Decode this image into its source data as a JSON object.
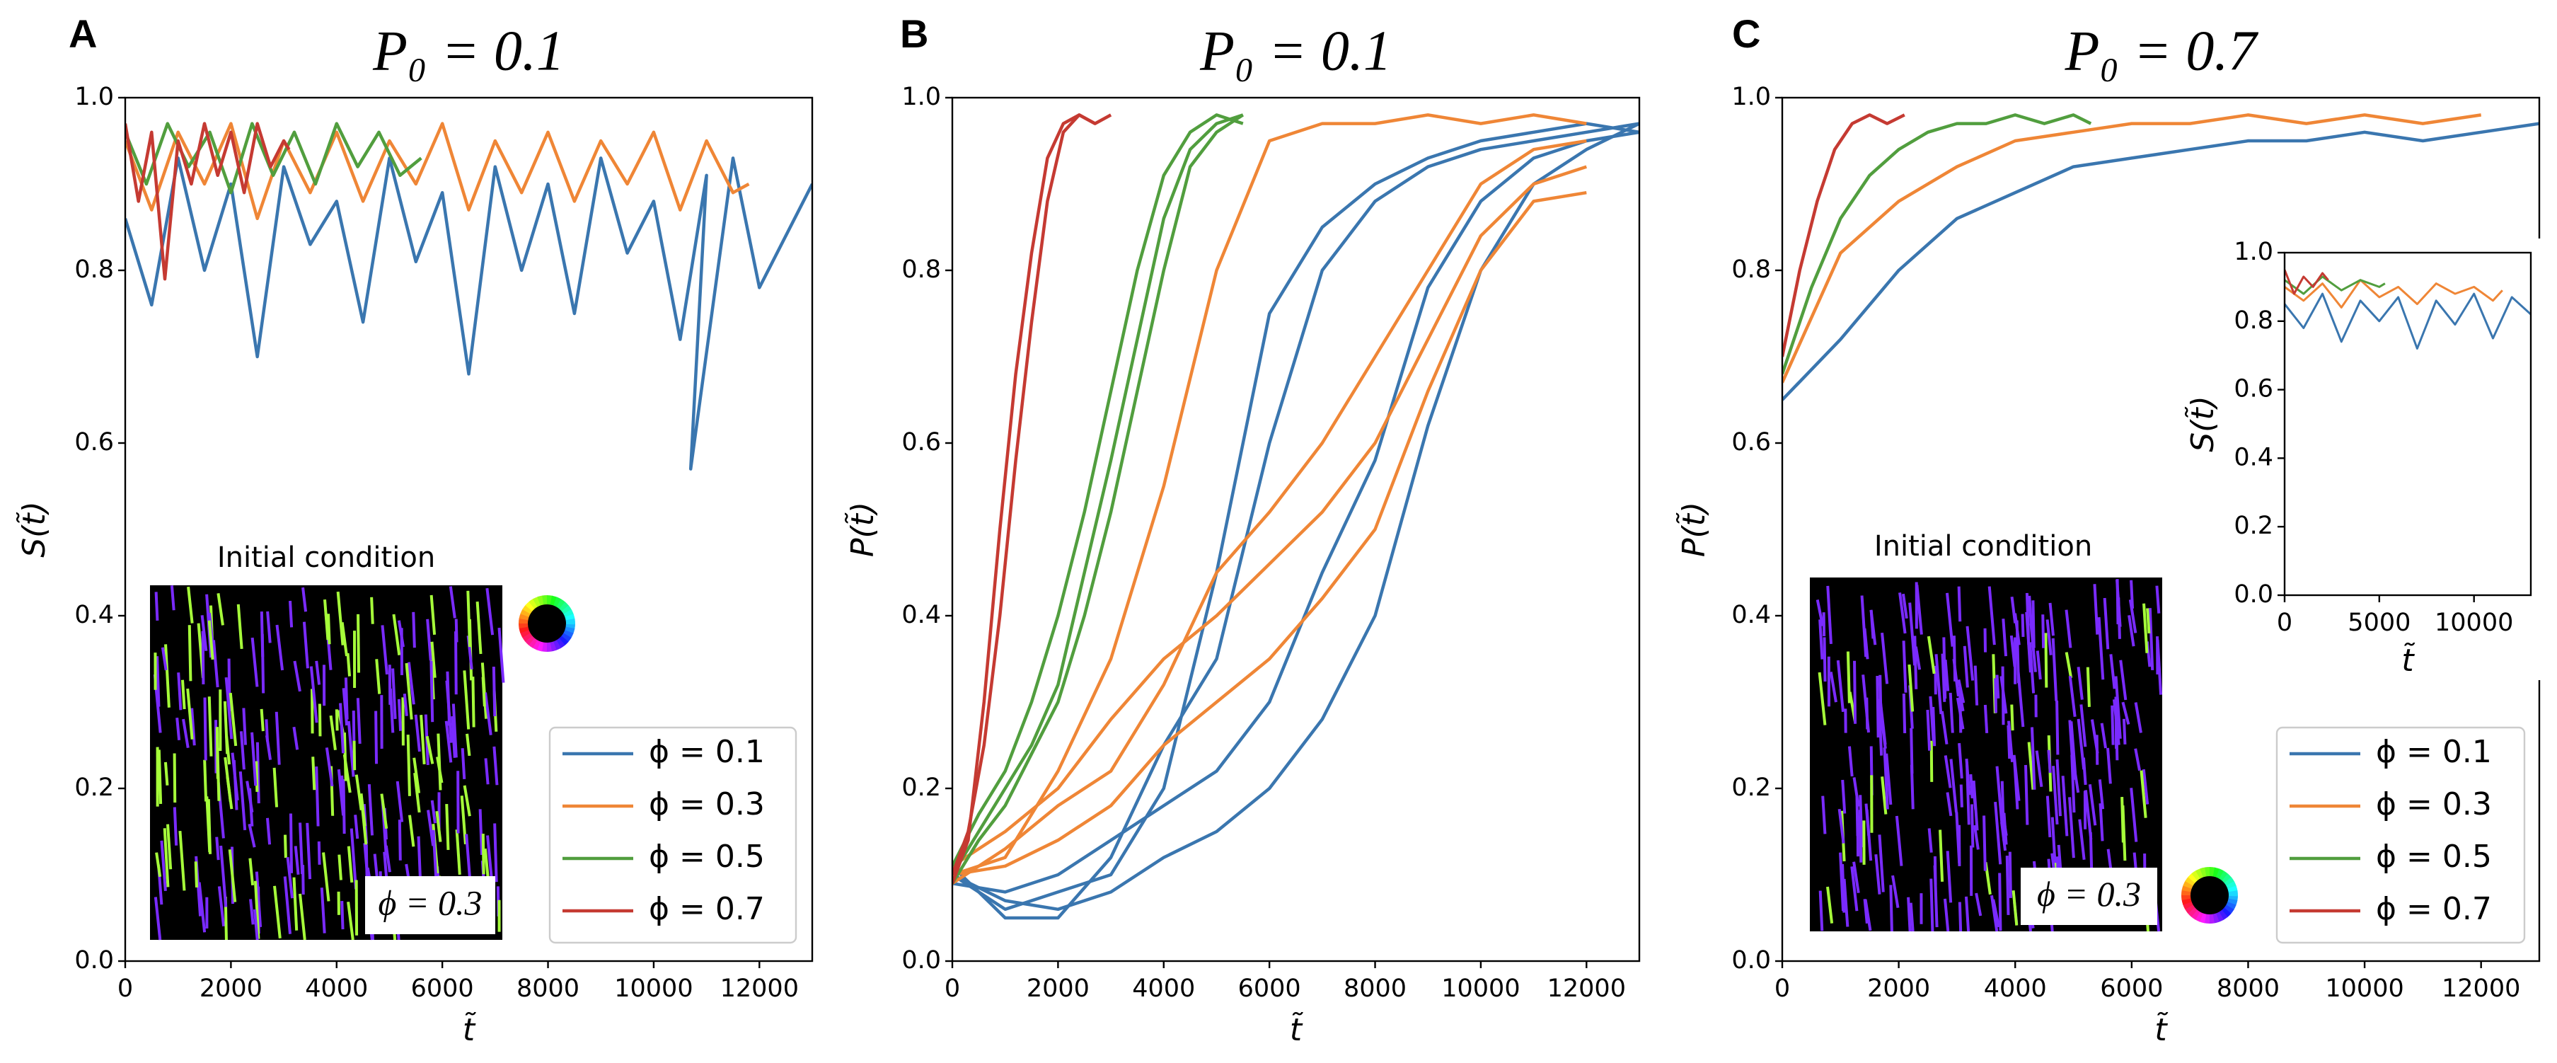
{
  "chart_data": [
    {
      "type": "line",
      "panel_label": "A",
      "title": "P₀ = 0.1",
      "xlabel": "t̃",
      "ylabel": "S(t̃)",
      "xlim": [
        0,
        13000
      ],
      "ylim": [
        0,
        1
      ],
      "xticks": [
        0,
        2000,
        4000,
        6000,
        8000,
        10000,
        12000
      ],
      "yticks": [
        {
          "value": 0,
          "label": "0.0"
        },
        0.2,
        0.4,
        0.6,
        0.8,
        {
          "value": 1,
          "label": "1.0"
        }
      ],
      "legend": "lower right",
      "inset_image": {
        "title": "Initial condition",
        "label": "ϕ = 0.3"
      },
      "series": [
        {
          "name": "ϕ = 0.1",
          "color": "#3a76af",
          "x": [
            0,
            500,
            1000,
            1500,
            2000,
            2500,
            3000,
            3500,
            4000,
            4500,
            5000,
            5500,
            6000,
            6500,
            7000,
            7500,
            8000,
            8500,
            9000,
            9500,
            10000,
            10500,
            11000,
            10700,
            11500,
            12000,
            13000
          ],
          "values": [
            0.86,
            0.76,
            0.93,
            0.8,
            0.9,
            0.7,
            0.92,
            0.83,
            0.88,
            0.74,
            0.93,
            0.81,
            0.89,
            0.68,
            0.92,
            0.8,
            0.9,
            0.75,
            0.93,
            0.82,
            0.88,
            0.72,
            0.91,
            0.57,
            0.93,
            0.78,
            0.9
          ]
        },
        {
          "name": "ϕ = 0.3",
          "color": "#ef8636",
          "x": [
            0,
            500,
            1000,
            1500,
            2000,
            2500,
            3000,
            3500,
            4000,
            4500,
            5000,
            5500,
            6000,
            6500,
            7000,
            7500,
            8000,
            8500,
            9000,
            9500,
            10000,
            10500,
            11000,
            11500,
            11800
          ],
          "values": [
            0.95,
            0.87,
            0.96,
            0.9,
            0.97,
            0.86,
            0.95,
            0.89,
            0.96,
            0.88,
            0.95,
            0.9,
            0.97,
            0.87,
            0.95,
            0.89,
            0.96,
            0.88,
            0.95,
            0.9,
            0.96,
            0.87,
            0.95,
            0.89,
            0.9
          ]
        },
        {
          "name": "ϕ = 0.5",
          "color": "#519e3e",
          "x": [
            0,
            400,
            800,
            1200,
            1600,
            2000,
            2400,
            2800,
            3200,
            3600,
            4000,
            4400,
            4800,
            5200,
            5600
          ],
          "values": [
            0.96,
            0.9,
            0.97,
            0.92,
            0.96,
            0.89,
            0.97,
            0.91,
            0.96,
            0.9,
            0.97,
            0.92,
            0.96,
            0.91,
            0.93
          ]
        },
        {
          "name": "ϕ = 0.7",
          "color": "#c53a32",
          "x": [
            0,
            250,
            500,
            750,
            1000,
            1250,
            1500,
            1750,
            2000,
            2250,
            2500,
            2750,
            3000,
            3100
          ],
          "values": [
            0.97,
            0.88,
            0.96,
            0.79,
            0.95,
            0.9,
            0.97,
            0.91,
            0.96,
            0.89,
            0.97,
            0.92,
            0.95,
            0.94
          ]
        }
      ]
    },
    {
      "type": "line",
      "panel_label": "B",
      "title": "P₀ = 0.1",
      "xlabel": "t̃",
      "ylabel": "P(t̃)",
      "xlim": [
        0,
        13000
      ],
      "ylim": [
        0,
        1
      ],
      "xticks": [
        0,
        2000,
        4000,
        6000,
        8000,
        10000,
        12000
      ],
      "yticks": [
        {
          "value": 0,
          "label": "0.0"
        },
        0.2,
        0.4,
        0.6,
        0.8,
        {
          "value": 1,
          "label": "1.0"
        }
      ],
      "series": [
        {
          "color": "#3a76af",
          "x": [
            0,
            1000,
            2000,
            3000,
            4000,
            5000,
            6000,
            7000,
            8000,
            9000,
            10000,
            11000,
            12000,
            13000
          ],
          "values": [
            0.1,
            0.06,
            0.08,
            0.1,
            0.2,
            0.45,
            0.75,
            0.85,
            0.9,
            0.93,
            0.95,
            0.96,
            0.97,
            0.96
          ]
        },
        {
          "color": "#3a76af",
          "x": [
            0,
            1000,
            2000,
            3000,
            4000,
            5000,
            6000,
            7000,
            8000,
            9000,
            10000,
            11000,
            12000,
            13000
          ],
          "values": [
            0.11,
            0.05,
            0.05,
            0.12,
            0.25,
            0.35,
            0.6,
            0.8,
            0.88,
            0.92,
            0.94,
            0.95,
            0.96,
            0.97
          ]
        },
        {
          "color": "#3a76af",
          "x": [
            0,
            1000,
            2000,
            3000,
            4000,
            5000,
            6000,
            7000,
            8000,
            9000,
            10000,
            11000,
            12000,
            13000
          ],
          "values": [
            0.09,
            0.08,
            0.1,
            0.14,
            0.18,
            0.22,
            0.3,
            0.45,
            0.58,
            0.78,
            0.88,
            0.93,
            0.95,
            0.96
          ]
        },
        {
          "color": "#3a76af",
          "x": [
            0,
            1000,
            2000,
            3000,
            4000,
            5000,
            6000,
            7000,
            8000,
            9000,
            10000,
            11000,
            12000,
            13000
          ],
          "values": [
            0.1,
            0.07,
            0.06,
            0.08,
            0.12,
            0.15,
            0.2,
            0.28,
            0.4,
            0.62,
            0.8,
            0.9,
            0.94,
            0.97
          ]
        },
        {
          "color": "#ef8636",
          "x": [
            0,
            1000,
            2000,
            3000,
            4000,
            5000,
            6000,
            7000,
            8000,
            9000,
            10000,
            11000,
            12000
          ],
          "values": [
            0.1,
            0.12,
            0.22,
            0.35,
            0.55,
            0.8,
            0.95,
            0.97,
            0.97,
            0.98,
            0.97,
            0.98,
            0.97
          ]
        },
        {
          "color": "#ef8636",
          "x": [
            0,
            1000,
            2000,
            3000,
            4000,
            5000,
            6000,
            7000,
            8000,
            9000,
            10000,
            11000,
            12000
          ],
          "values": [
            0.09,
            0.13,
            0.18,
            0.22,
            0.32,
            0.45,
            0.52,
            0.6,
            0.7,
            0.8,
            0.9,
            0.94,
            0.95
          ]
        },
        {
          "color": "#ef8636",
          "x": [
            0,
            1000,
            2000,
            3000,
            4000,
            5000,
            6000,
            7000,
            8000,
            9000,
            10000,
            11000,
            12000
          ],
          "values": [
            0.11,
            0.15,
            0.2,
            0.28,
            0.35,
            0.4,
            0.46,
            0.52,
            0.6,
            0.72,
            0.84,
            0.9,
            0.92
          ]
        },
        {
          "color": "#ef8636",
          "x": [
            0,
            1000,
            2000,
            3000,
            4000,
            5000,
            6000,
            7000,
            8000,
            9000,
            10000,
            11000,
            12000
          ],
          "values": [
            0.1,
            0.11,
            0.14,
            0.18,
            0.25,
            0.3,
            0.35,
            0.42,
            0.5,
            0.66,
            0.8,
            0.88,
            0.89
          ]
        },
        {
          "color": "#519e3e",
          "x": [
            0,
            500,
            1000,
            1500,
            2000,
            2500,
            3000,
            3500,
            4000,
            4500,
            5000,
            5500
          ],
          "values": [
            0.1,
            0.15,
            0.2,
            0.25,
            0.32,
            0.45,
            0.58,
            0.72,
            0.86,
            0.94,
            0.97,
            0.98
          ]
        },
        {
          "color": "#519e3e",
          "x": [
            0,
            500,
            1000,
            1500,
            2000,
            2500,
            3000,
            3500,
            4000,
            4500,
            5000,
            5500
          ],
          "values": [
            0.11,
            0.17,
            0.22,
            0.3,
            0.4,
            0.52,
            0.66,
            0.8,
            0.91,
            0.96,
            0.98,
            0.97
          ]
        },
        {
          "color": "#519e3e",
          "x": [
            0,
            500,
            1000,
            1500,
            2000,
            2500,
            3000,
            3500,
            4000,
            4500,
            5000,
            5500
          ],
          "values": [
            0.09,
            0.14,
            0.18,
            0.24,
            0.3,
            0.4,
            0.52,
            0.66,
            0.8,
            0.92,
            0.96,
            0.98
          ]
        },
        {
          "color": "#c53a32",
          "x": [
            0,
            300,
            600,
            900,
            1200,
            1500,
            1800,
            2100,
            2400,
            2700,
            3000
          ],
          "values": [
            0.1,
            0.15,
            0.25,
            0.4,
            0.58,
            0.74,
            0.88,
            0.96,
            0.98,
            0.97,
            0.98
          ]
        },
        {
          "color": "#c53a32",
          "x": [
            0,
            300,
            600,
            900,
            1200,
            1500,
            1800,
            2100,
            2400,
            2700
          ],
          "values": [
            0.09,
            0.14,
            0.3,
            0.5,
            0.68,
            0.82,
            0.93,
            0.97,
            0.98,
            0.97
          ]
        }
      ]
    },
    {
      "type": "line",
      "panel_label": "C",
      "title": "P₀ = 0.7",
      "xlabel": "t̃",
      "ylabel": "P(t̃)",
      "xlim": [
        0,
        13000
      ],
      "ylim": [
        0,
        1
      ],
      "xticks": [
        0,
        2000,
        4000,
        6000,
        8000,
        10000,
        12000
      ],
      "yticks": [
        {
          "value": 0,
          "label": "0.0"
        },
        0.2,
        0.4,
        0.6,
        0.8,
        {
          "value": 1,
          "label": "1.0"
        }
      ],
      "legend": "lower right",
      "inset_image": {
        "title": "Initial condition",
        "label": "ϕ = 0.3"
      },
      "series": [
        {
          "name": "ϕ = 0.1",
          "color": "#3a76af",
          "x": [
            0,
            1000,
            2000,
            3000,
            4000,
            5000,
            6000,
            7000,
            8000,
            9000,
            10000,
            11000,
            12000,
            13000
          ],
          "values": [
            0.65,
            0.72,
            0.8,
            0.86,
            0.89,
            0.92,
            0.93,
            0.94,
            0.95,
            0.95,
            0.96,
            0.95,
            0.96,
            0.97
          ]
        },
        {
          "name": "ϕ = 0.3",
          "color": "#ef8636",
          "x": [
            0,
            1000,
            2000,
            3000,
            4000,
            5000,
            6000,
            7000,
            8000,
            9000,
            10000,
            11000,
            12000
          ],
          "values": [
            0.67,
            0.82,
            0.88,
            0.92,
            0.95,
            0.96,
            0.97,
            0.97,
            0.98,
            0.97,
            0.98,
            0.97,
            0.98
          ]
        },
        {
          "name": "ϕ = 0.5",
          "color": "#519e3e",
          "x": [
            0,
            500,
            1000,
            1500,
            2000,
            2500,
            3000,
            3500,
            4000,
            4500,
            5000,
            5300
          ],
          "values": [
            0.68,
            0.78,
            0.86,
            0.91,
            0.94,
            0.96,
            0.97,
            0.97,
            0.98,
            0.97,
            0.98,
            0.97
          ]
        },
        {
          "name": "ϕ = 0.7",
          "color": "#c53a32",
          "x": [
            0,
            300,
            600,
            900,
            1200,
            1500,
            1800,
            2100
          ],
          "values": [
            0.7,
            0.8,
            0.88,
            0.94,
            0.97,
            0.98,
            0.97,
            0.98
          ]
        }
      ]
    },
    {
      "type": "line",
      "ylabel": "S(t̃)",
      "xlabel": "t̃",
      "xlim": [
        0,
        13000
      ],
      "ylim": [
        0,
        1
      ],
      "xticks": [
        0,
        5000,
        10000
      ],
      "yticks": [
        {
          "value": 0,
          "label": "0.0"
        },
        0.2,
        0.4,
        0.6,
        0.8,
        {
          "value": 1,
          "label": "1.0"
        }
      ],
      "series": [
        {
          "color": "#3a76af",
          "x": [
            0,
            1000,
            2000,
            3000,
            4000,
            5000,
            6000,
            7000,
            8000,
            9000,
            10000,
            11000,
            12000,
            13000
          ],
          "values": [
            0.85,
            0.78,
            0.88,
            0.74,
            0.86,
            0.8,
            0.87,
            0.72,
            0.86,
            0.79,
            0.88,
            0.75,
            0.87,
            0.82
          ]
        },
        {
          "color": "#ef8636",
          "x": [
            0,
            1000,
            2000,
            3000,
            4000,
            5000,
            6000,
            7000,
            8000,
            9000,
            10000,
            11000,
            11500
          ],
          "values": [
            0.9,
            0.86,
            0.91,
            0.84,
            0.92,
            0.87,
            0.9,
            0.85,
            0.91,
            0.88,
            0.9,
            0.86,
            0.89
          ]
        },
        {
          "color": "#519e3e",
          "x": [
            0,
            1000,
            2000,
            3000,
            4000,
            5000,
            5300
          ],
          "values": [
            0.92,
            0.88,
            0.93,
            0.89,
            0.92,
            0.9,
            0.91
          ]
        },
        {
          "color": "#c53a32",
          "x": [
            0,
            500,
            1000,
            1500,
            2000,
            2300
          ],
          "values": [
            0.95,
            0.88,
            0.93,
            0.9,
            0.94,
            0.92
          ]
        }
      ]
    }
  ]
}
